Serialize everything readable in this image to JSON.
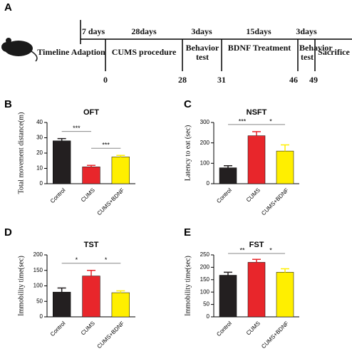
{
  "timeline": {
    "panel": "A",
    "durations": [
      "7 days",
      "28days",
      "3days",
      "15days",
      "3days"
    ],
    "stages": [
      "Timeline Adaption",
      "CUMS procedure",
      "Behavior test",
      "BDNF Treatment",
      "Behavior test",
      "Sacrifice"
    ],
    "days": [
      0,
      28,
      31,
      46,
      49
    ]
  },
  "chart_data": [
    {
      "type": "bar",
      "panel": "B",
      "title": "OFT",
      "ylabel": "Total movement distance(m)",
      "categories": [
        "Control",
        "CUMS",
        "CUMS+BDNF"
      ],
      "values": [
        28,
        11,
        17.5
      ],
      "errors": [
        1.5,
        1,
        1
      ],
      "colors": [
        "#231f20",
        "#e8262b",
        "#ffef00"
      ],
      "ylim": [
        0,
        40
      ],
      "yticks": [
        0,
        10,
        20,
        30,
        40
      ],
      "annotations": [
        {
          "text": "***",
          "pair": [
            0,
            1
          ]
        },
        {
          "text": "***",
          "pair": [
            1,
            2
          ]
        }
      ]
    },
    {
      "type": "bar",
      "panel": "C",
      "title": "NSFT",
      "ylabel": "Latency to eat (sec)",
      "categories": [
        "Control",
        "CUMS",
        "CUMS+BDNF"
      ],
      "values": [
        78,
        235,
        160
      ],
      "errors": [
        10,
        20,
        30
      ],
      "colors": [
        "#231f20",
        "#e8262b",
        "#ffef00"
      ],
      "ylim": [
        0,
        300
      ],
      "yticks": [
        0,
        100,
        200,
        300
      ],
      "annotations": [
        {
          "text": "***",
          "pair": [
            0,
            1
          ]
        },
        {
          "text": "*",
          "pair": [
            1,
            2
          ]
        }
      ]
    },
    {
      "type": "bar",
      "panel": "D",
      "title": "TST",
      "ylabel": "Immobility time(sec)",
      "categories": [
        "Control",
        "CUMS",
        "CUMS+BDNF"
      ],
      "values": [
        80,
        132,
        78
      ],
      "errors": [
        13,
        18,
        6
      ],
      "colors": [
        "#231f20",
        "#e8262b",
        "#ffef00"
      ],
      "ylim": [
        0,
        200
      ],
      "yticks": [
        0,
        50,
        100,
        150,
        200
      ],
      "annotations": [
        {
          "text": "*",
          "pair": [
            0,
            1
          ]
        },
        {
          "text": "*",
          "pair": [
            1,
            2
          ]
        }
      ]
    },
    {
      "type": "bar",
      "panel": "E",
      "title": "FST",
      "ylabel": "Immobility time(sec)",
      "categories": [
        "Control",
        "CUMS",
        "CUMS+BDNF"
      ],
      "values": [
        168,
        220,
        180
      ],
      "errors": [
        12,
        12,
        14
      ],
      "colors": [
        "#231f20",
        "#e8262b",
        "#ffef00"
      ],
      "ylim": [
        0,
        250
      ],
      "yticks": [
        0,
        50,
        100,
        150,
        200,
        250
      ],
      "annotations": [
        {
          "text": "**",
          "pair": [
            0,
            1
          ]
        },
        {
          "text": "*",
          "pair": [
            1,
            2
          ]
        }
      ]
    }
  ]
}
